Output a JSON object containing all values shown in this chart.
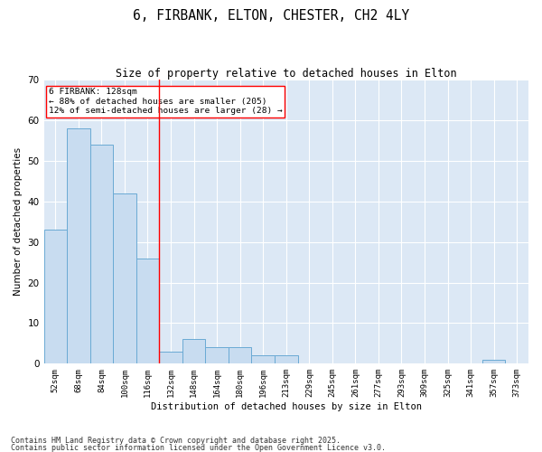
{
  "title": "6, FIRBANK, ELTON, CHESTER, CH2 4LY",
  "subtitle": "Size of property relative to detached houses in Elton",
  "xlabel": "Distribution of detached houses by size in Elton",
  "ylabel": "Number of detached properties",
  "bar_color": "#c8dcf0",
  "bar_edge_color": "#6aaad4",
  "bg_color": "#dce8f5",
  "grid_color": "#ffffff",
  "categories": [
    "52sqm",
    "68sqm",
    "84sqm",
    "100sqm",
    "116sqm",
    "132sqm",
    "148sqm",
    "164sqm",
    "180sqm",
    "196sqm",
    "213sqm",
    "229sqm",
    "245sqm",
    "261sqm",
    "277sqm",
    "293sqm",
    "309sqm",
    "325sqm",
    "341sqm",
    "357sqm",
    "373sqm"
  ],
  "values": [
    33,
    58,
    54,
    42,
    26,
    3,
    6,
    4,
    4,
    2,
    2,
    0,
    0,
    0,
    0,
    0,
    0,
    0,
    0,
    1,
    0
  ],
  "property_line_label": "6 FIRBANK: 128sqm",
  "annotation_line1": "← 88% of detached houses are smaller (205)",
  "annotation_line2": "12% of semi-detached houses are larger (28) →",
  "ylim": [
    0,
    70
  ],
  "yticks": [
    0,
    10,
    20,
    30,
    40,
    50,
    60,
    70
  ],
  "footnote1": "Contains HM Land Registry data © Crown copyright and database right 2025.",
  "footnote2": "Contains public sector information licensed under the Open Government Licence v3.0."
}
